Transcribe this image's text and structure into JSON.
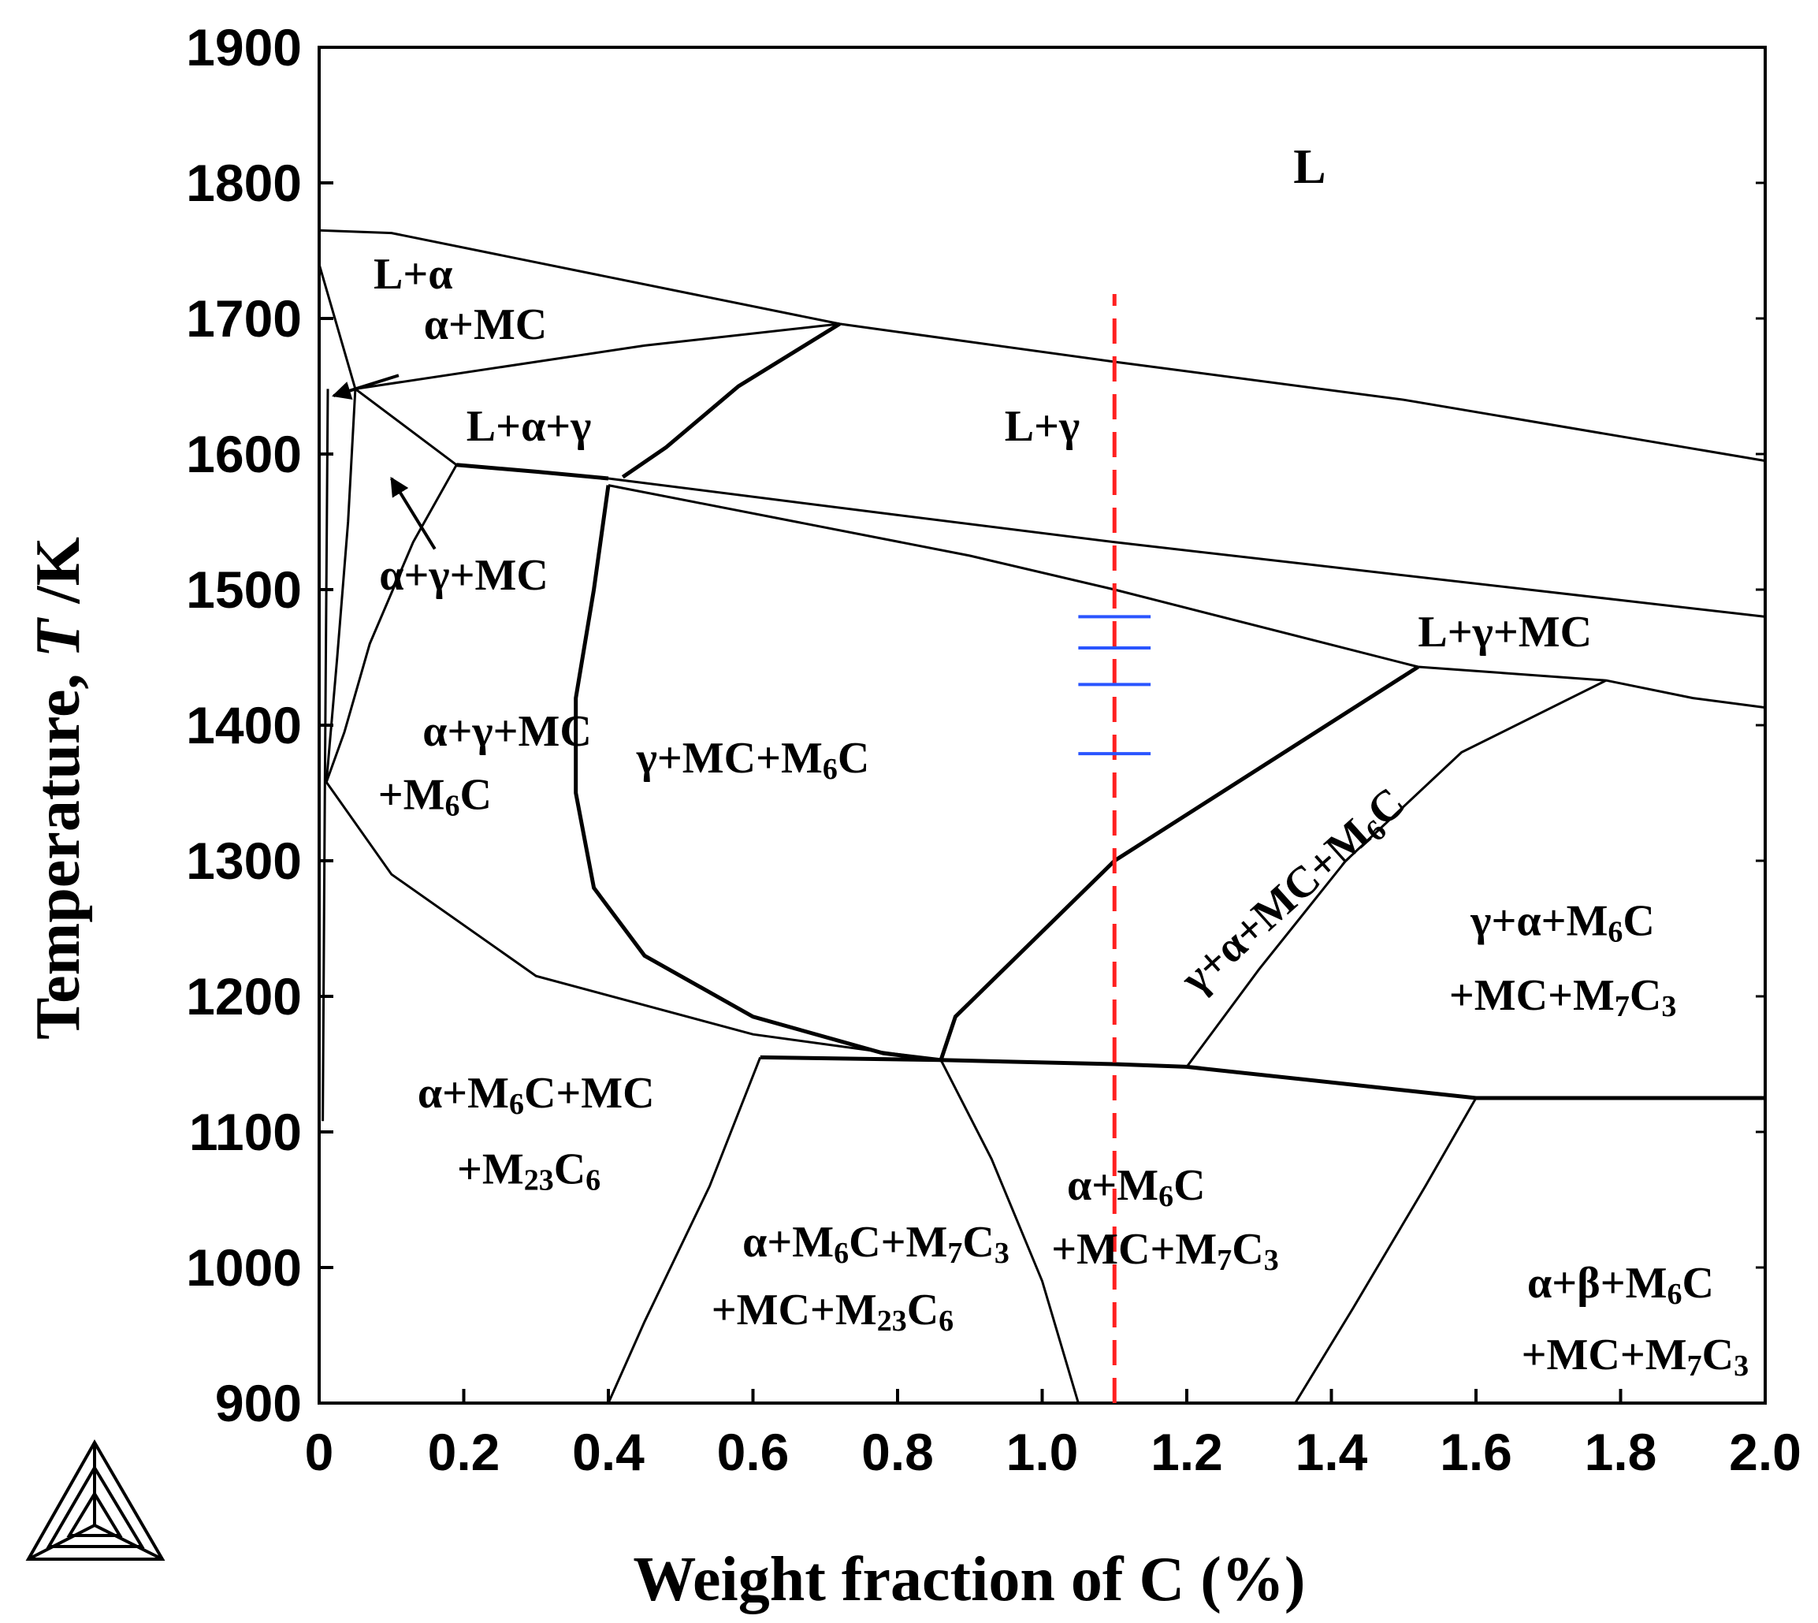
{
  "chart_data": {
    "type": "phase-diagram",
    "xlabel": "Weight fraction of C (%)",
    "ylabel_prefix": "Temperature, ",
    "ylabel_var": "T",
    "ylabel_unit": " /K",
    "xlim": [
      0,
      2.0
    ],
    "ylim": [
      900,
      1900
    ],
    "x_ticks": [
      0,
      0.2,
      0.4,
      0.6,
      0.8,
      1.0,
      1.2,
      1.4,
      1.6,
      1.8,
      2.0
    ],
    "x_tick_labels": [
      "0",
      "0.2",
      "0.4",
      "0.6",
      "0.8",
      "1.0",
      "1.2",
      "1.4",
      "1.6",
      "1.8",
      "2.0"
    ],
    "y_ticks": [
      900,
      1000,
      1100,
      1200,
      1300,
      1400,
      1500,
      1600,
      1700,
      1800,
      1900
    ],
    "y_tick_labels": [
      "900",
      "1000",
      "1100",
      "1200",
      "1300",
      "1400",
      "1500",
      "1600",
      "1700",
      "1800",
      "1900"
    ],
    "boundaries": [
      {
        "id": "liquidus",
        "weight": "normal",
        "points": [
          [
            0,
            1765
          ],
          [
            0.1,
            1763
          ],
          [
            0.72,
            1696
          ],
          [
            1.1,
            1668
          ],
          [
            1.5,
            1640
          ],
          [
            2.0,
            1595
          ]
        ]
      },
      {
        "id": "alpha-start",
        "weight": "normal",
        "points": [
          [
            0,
            1740
          ],
          [
            0.05,
            1648
          ]
        ]
      },
      {
        "id": "l-alpha-mc-lower",
        "weight": "normal",
        "points": [
          [
            0.05,
            1648
          ],
          [
            0.45,
            1680
          ],
          [
            0.72,
            1696
          ]
        ]
      },
      {
        "id": "l-alpha-gamma-diag",
        "weight": "normal",
        "points": [
          [
            0.05,
            1648
          ],
          [
            0.19,
            1592
          ]
        ]
      },
      {
        "id": "peritectic-line",
        "weight": "heavy",
        "points": [
          [
            0.19,
            1592
          ],
          [
            0.3,
            1587
          ],
          [
            0.4,
            1582
          ]
        ]
      },
      {
        "id": "gamma-liquidus",
        "weight": "heavy",
        "points": [
          [
            0.72,
            1696
          ],
          [
            0.58,
            1650
          ],
          [
            0.48,
            1605
          ],
          [
            0.42,
            1583
          ]
        ]
      },
      {
        "id": "l-gamma-lower",
        "weight": "normal",
        "points": [
          [
            0.4,
            1582
          ],
          [
            0.8,
            1555
          ],
          [
            1.1,
            1535
          ],
          [
            2.0,
            1480
          ]
        ]
      },
      {
        "id": "gamma-solidus",
        "weight": "normal",
        "points": [
          [
            0.4,
            1577
          ],
          [
            0.9,
            1525
          ],
          [
            1.1,
            1500
          ],
          [
            1.52,
            1443
          ]
        ]
      },
      {
        "id": "l-gamma-mc-lower",
        "weight": "normal",
        "points": [
          [
            1.52,
            1443
          ],
          [
            1.78,
            1433
          ],
          [
            1.9,
            1420
          ],
          [
            2.0,
            1413
          ]
        ]
      },
      {
        "id": "gamma-mc-left",
        "weight": "normal",
        "points": [
          [
            0.19,
            1592
          ],
          [
            0.13,
            1535
          ],
          [
            0.07,
            1460
          ],
          [
            0.035,
            1395
          ],
          [
            0.01,
            1358
          ]
        ]
      },
      {
        "id": "alpha-gamma-mc-left",
        "weight": "normal",
        "points": [
          [
            0.05,
            1648
          ],
          [
            0.04,
            1550
          ],
          [
            0.025,
            1450
          ],
          [
            0.01,
            1358
          ]
        ]
      },
      {
        "id": "low-c-edge",
        "weight": "normal",
        "points": [
          [
            0.012,
            1648
          ],
          [
            0.008,
            1358
          ],
          [
            0.005,
            1108
          ]
        ]
      },
      {
        "id": "gamma-m6c-boundary",
        "weight": "heavy",
        "points": [
          [
            0.4,
            1577
          ],
          [
            0.38,
            1500
          ],
          [
            0.355,
            1420
          ],
          [
            0.355,
            1350
          ],
          [
            0.38,
            1280
          ],
          [
            0.45,
            1230
          ],
          [
            0.6,
            1185
          ],
          [
            0.78,
            1158
          ],
          [
            0.86,
            1153
          ]
        ]
      },
      {
        "id": "alpha-m23c6-boundary",
        "weight": "normal",
        "points": [
          [
            0.01,
            1358
          ],
          [
            0.1,
            1290
          ],
          [
            0.3,
            1215
          ],
          [
            0.6,
            1172
          ],
          [
            0.86,
            1153
          ]
        ]
      },
      {
        "id": "eutectoid-line",
        "weight": "heavy",
        "points": [
          [
            0.61,
            1155
          ],
          [
            0.86,
            1153
          ],
          [
            1.1,
            1150
          ],
          [
            1.2,
            1148
          ],
          [
            1.6,
            1125
          ],
          [
            2.0,
            1125
          ]
        ]
      },
      {
        "id": "gamma-alpha-mc-left",
        "weight": "heavy",
        "points": [
          [
            0.86,
            1153
          ],
          [
            0.88,
            1185
          ],
          [
            1.1,
            1300
          ],
          [
            1.52,
            1443
          ]
        ]
      },
      {
        "id": "gamma-alpha-mc-right",
        "weight": "normal",
        "points": [
          [
            1.2,
            1148
          ],
          [
            1.3,
            1220
          ],
          [
            1.42,
            1300
          ],
          [
            1.58,
            1380
          ],
          [
            1.78,
            1433
          ]
        ]
      },
      {
        "id": "m7c3-m23c6-boundary",
        "weight": "normal",
        "points": [
          [
            0.61,
            1155
          ],
          [
            0.54,
            1060
          ],
          [
            0.45,
            960
          ],
          [
            0.4,
            900
          ]
        ]
      },
      {
        "id": "alpha-m6c-mc-left",
        "weight": "normal",
        "points": [
          [
            0.86,
            1153
          ],
          [
            0.93,
            1080
          ],
          [
            1.0,
            990
          ],
          [
            1.05,
            900
          ]
        ]
      },
      {
        "id": "beta-boundary",
        "weight": "normal",
        "points": [
          [
            1.6,
            1125
          ],
          [
            1.53,
            1060
          ],
          [
            1.43,
            970
          ],
          [
            1.35,
            900
          ]
        ]
      }
    ],
    "regions": [
      {
        "text": "L",
        "x": 1.37,
        "y": 1800,
        "size": "big"
      },
      {
        "text": "L+α",
        "x": 0.13,
        "y": 1722
      },
      {
        "text": "α+MC",
        "x": 0.23,
        "y": 1685
      },
      {
        "text": "L+α+γ",
        "x": 0.29,
        "y": 1610
      },
      {
        "text": "L+γ",
        "x": 1.0,
        "y": 1610
      },
      {
        "text": "α+γ+MC",
        "x": 0.2,
        "y": 1500
      },
      {
        "text": "L+γ+MC",
        "x": 1.64,
        "y": 1458
      },
      {
        "text": "α+γ+MC",
        "x": 0.26,
        "y": 1385
      },
      {
        "text": "+M₆C",
        "x": 0.16,
        "y": 1338
      },
      {
        "text": "γ+MC+M₆C",
        "x": 0.6,
        "y": 1365
      },
      {
        "text": "γ+α+MC+M₆C",
        "x": 1.36,
        "y": 1270,
        "rotate": -42
      },
      {
        "text": "γ+α+M₆C",
        "x": 1.72,
        "y": 1245
      },
      {
        "text": "+MC+M₇C₃",
        "x": 1.72,
        "y": 1190
      },
      {
        "text": "α+M₆C+MC",
        "x": 0.3,
        "y": 1118
      },
      {
        "text": "+M₂₃C₆",
        "x": 0.29,
        "y": 1062
      },
      {
        "text": "α+M₆C",
        "x": 1.13,
        "y": 1050
      },
      {
        "text": "+MC+M₇C₃",
        "x": 1.17,
        "y": 1003
      },
      {
        "text": "α+M₆C+M₇C₃",
        "x": 0.77,
        "y": 1008
      },
      {
        "text": "+MC+M₂₃C₆",
        "x": 0.71,
        "y": 958
      },
      {
        "text": "α+β+M₆C",
        "x": 1.8,
        "y": 978
      },
      {
        "text": "+MC+M₇C₃",
        "x": 1.82,
        "y": 925
      }
    ],
    "arrows": [
      {
        "from": [
          0.11,
          1658
        ],
        "to": [
          0.02,
          1643
        ]
      },
      {
        "from": [
          0.16,
          1530
        ],
        "to": [
          0.1,
          1582
        ]
      }
    ],
    "reference_line": {
      "x": 1.1,
      "y_from": 900,
      "y_to": 1718,
      "color": "#ff2020"
    },
    "markers": [
      {
        "x_from": 1.05,
        "x_to": 1.15,
        "y": 1480,
        "color": "#2a55ff"
      },
      {
        "x_from": 1.05,
        "x_to": 1.15,
        "y": 1457,
        "color": "#2a55ff"
      },
      {
        "x_from": 1.05,
        "x_to": 1.15,
        "y": 1430,
        "color": "#2a55ff"
      },
      {
        "x_from": 1.05,
        "x_to": 1.15,
        "y": 1379,
        "color": "#2a55ff"
      }
    ],
    "logo": "triangle-logo-icon"
  }
}
